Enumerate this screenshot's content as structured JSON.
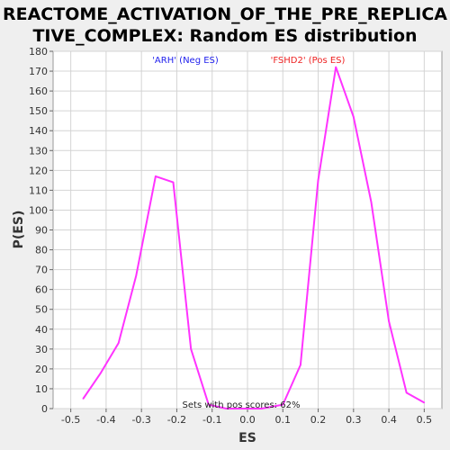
{
  "chart_data": {
    "type": "line",
    "title_line1": "REACTOME_ACTIVATION_OF_THE_PRE_REPLICA",
    "title_line2": "TIVE_COMPLEX: Random ES distribution",
    "xlabel": "ES",
    "ylabel": "P(ES)",
    "xlim": [
      -0.55,
      0.55
    ],
    "ylim": [
      0,
      180
    ],
    "x_ticks": [
      -0.5,
      -0.4,
      -0.3,
      -0.2,
      -0.1,
      0.0,
      0.1,
      0.2,
      0.3,
      0.4,
      0.5
    ],
    "x_tick_labels": [
      "-0.5",
      "-0.4",
      "-0.3",
      "-0.2",
      "-0.1",
      "0.0",
      "0.1",
      "0.2",
      "0.3",
      "0.4",
      "0.5"
    ],
    "y_ticks": [
      0,
      10,
      20,
      30,
      40,
      50,
      60,
      70,
      80,
      90,
      100,
      110,
      120,
      130,
      140,
      150,
      160,
      170,
      180
    ],
    "grid": true,
    "series": [
      {
        "color": "#ff33ff",
        "x": [
          -0.465,
          -0.415,
          -0.365,
          -0.315,
          -0.26,
          -0.21,
          -0.16,
          -0.11,
          -0.06,
          0.0,
          0.04,
          0.1,
          0.15,
          0.2,
          0.25,
          0.3,
          0.35,
          0.4,
          0.45,
          0.5
        ],
        "y": [
          5,
          18,
          33,
          67,
          117,
          114,
          30,
          2,
          0,
          0,
          0,
          2,
          22,
          115,
          172,
          147,
          104,
          44,
          8,
          3
        ]
      }
    ],
    "annotations": {
      "neg_label": "'ARH' (Neg ES)",
      "neg_color": "#2222ee",
      "pos_label": "'FSHD2' (Pos ES)",
      "pos_color": "#ee2222",
      "bottom_note": "Sets with pos scores: 62%"
    }
  }
}
